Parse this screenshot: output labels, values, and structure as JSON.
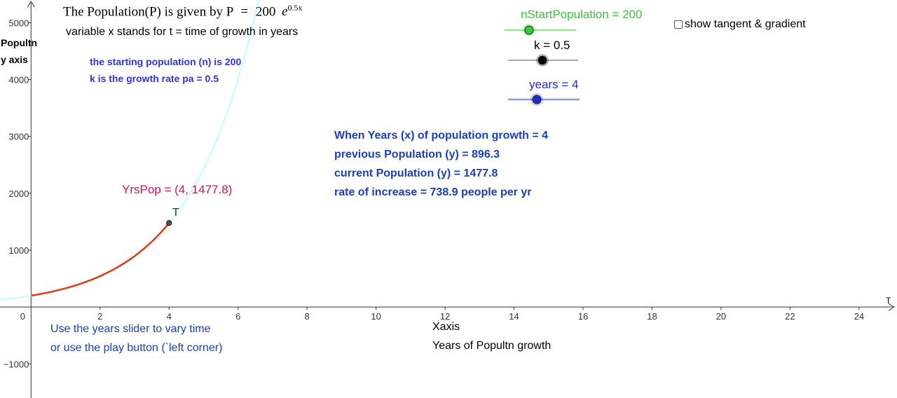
{
  "header": {
    "formula_prefix": "The Population(P) is given by P",
    "formula_eq": "=",
    "formula_coef": "200",
    "formula_base": "e",
    "formula_exp": "0.5x",
    "subtitle": "variable x stands for t = time of growth in years"
  },
  "notes": {
    "start_pop": "the starting population (n) is 200",
    "growth_rate": "k is the growth rate pa = 0.5"
  },
  "info": {
    "line1": "When Years (x)  of population growth = 4",
    "line2": "previous Population (y)  = 896.3",
    "line3": "current Population (y)  = 1477.8",
    "line4": "rate of increase = 738.9 people per yr"
  },
  "hints": {
    "line1": "Use the years slider to vary time",
    "line2": "or use the play button (`left corner)"
  },
  "sliders": {
    "start_pop": {
      "label": "nStartPopulation = 200",
      "value": 200,
      "min": 0,
      "max": 1000,
      "color": "#33cc33"
    },
    "k": {
      "label": "k = 0.5",
      "value": 0.5,
      "min": 0,
      "max": 1,
      "color": "#000000"
    },
    "years": {
      "label": "years = 4",
      "value": 4,
      "min": 0,
      "max": 10,
      "color": "#1a2fcc"
    }
  },
  "checkbox": {
    "label": "show tangent & gradient",
    "checked": false
  },
  "chart_data": {
    "type": "line",
    "title": "The Population(P) is given by P = 200 e^(0.5x)",
    "xlabel": "Xaxis",
    "xlabel2": "Years of Popultn growth",
    "ylabel": "Popultn",
    "ylabel2": "y axis",
    "x_axis_name": "T",
    "xlim": [
      -0.9,
      25.1
    ],
    "ylim": [
      -1600,
      5400
    ],
    "x_ticks": [
      2,
      4,
      6,
      8,
      10,
      12,
      14,
      16,
      18,
      20,
      22,
      24
    ],
    "x_tick_labels": [
      "2",
      "4",
      "6",
      "8",
      "10",
      "12",
      "14",
      "16",
      "18",
      "20",
      "22",
      "24"
    ],
    "y_ticks": [
      -1000,
      1000,
      2000,
      3000,
      4000,
      5000
    ],
    "y_tick_labels": [
      "−1000",
      "1000",
      "2000",
      "3000",
      "4000",
      "5000"
    ],
    "origin_label": "0",
    "n": 200,
    "k": 0.5,
    "years": 4,
    "series": [
      {
        "name": "full curve",
        "color": "#c8ffff",
        "x_range": [
          -0.9,
          6.8
        ]
      },
      {
        "name": "grown portion",
        "color": "#e23a12",
        "x_range": [
          0,
          4
        ]
      }
    ],
    "point": {
      "name": "YrsPop",
      "x": 4,
      "y": 1477.8,
      "label": "YrsPop = (4, 1477.8)",
      "tag": "T"
    }
  }
}
